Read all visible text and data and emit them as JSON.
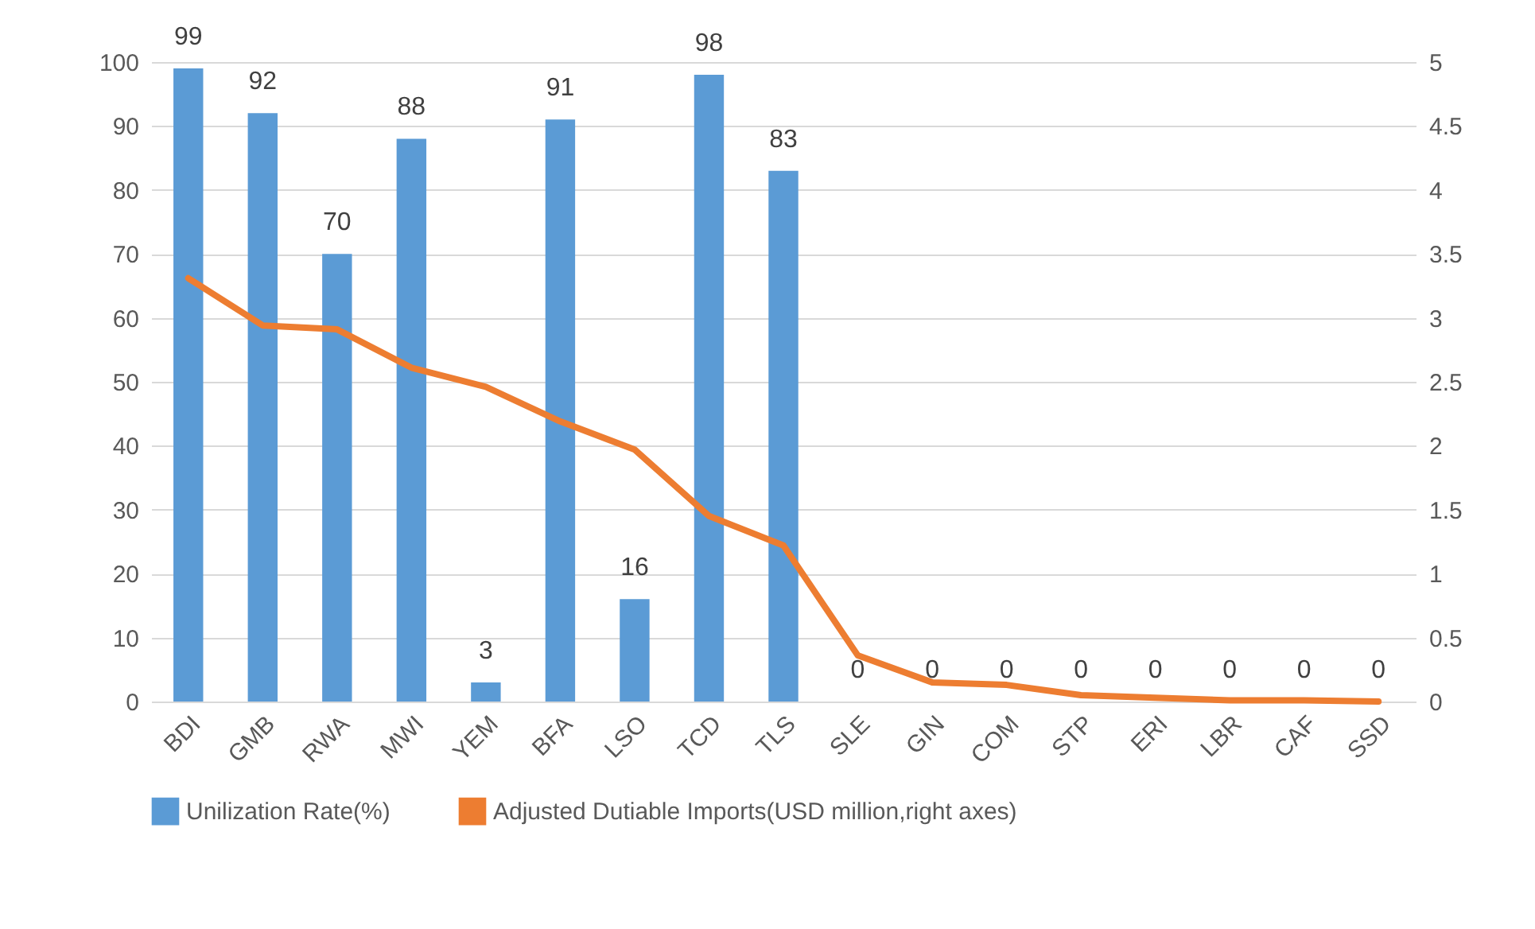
{
  "chart_data": {
    "type": "bar",
    "categories": [
      "BDI",
      "GMB",
      "RWA",
      "MWI",
      "YEM",
      "BFA",
      "LSO",
      "TCD",
      "TLS",
      "SLE",
      "GIN",
      "COM",
      "STP",
      "ERI",
      "LBR",
      "CAF",
      "SSD"
    ],
    "series": [
      {
        "name": "Unilization Rate(%)",
        "color": "#5b9bd5",
        "values": [
          99,
          92,
          70,
          88,
          3,
          91,
          16,
          98,
          83,
          0,
          0,
          0,
          0,
          0,
          0,
          0,
          0
        ],
        "value_labels": [
          "99",
          "92",
          "70",
          "88",
          "3",
          "91",
          "16",
          "98",
          "83",
          "0",
          "0",
          "0",
          "0",
          "0",
          "0",
          "0",
          "0"
        ]
      },
      {
        "name": "Adjusted Dutiable Imports(USD million,right axes)",
        "type": "line",
        "axis": "y2",
        "color": "#ed7d31",
        "values": [
          3.31,
          2.94,
          2.91,
          2.61,
          2.46,
          2.19,
          1.97,
          1.45,
          1.22,
          0.36,
          0.15,
          0.13,
          0.05,
          0.03,
          0.01,
          0.01,
          0
        ]
      }
    ],
    "ylim": [
      0,
      100
    ],
    "yticks": [
      0,
      10,
      20,
      30,
      40,
      50,
      60,
      70,
      80,
      90,
      100
    ],
    "y2lim": [
      0,
      5
    ],
    "y2ticks": [
      0,
      0.5,
      1,
      1.5,
      2,
      2.5,
      3,
      3.5,
      4,
      4.5,
      5
    ],
    "grid": "y",
    "legend": "bottom"
  }
}
